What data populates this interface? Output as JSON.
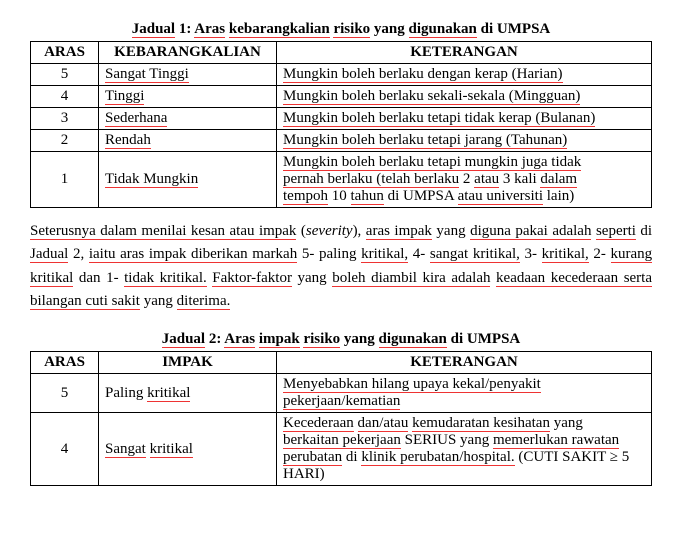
{
  "table1": {
    "caption_prefix": "Jadual",
    "caption_num": "1:",
    "caption_words": [
      "Aras",
      "kebarangkalian",
      "risiko",
      "yang",
      "digunakan",
      "di",
      "UMPSA"
    ],
    "headers": {
      "aras": "ARAS",
      "mid": "KEBARANGKALIAN",
      "ket": "KETERANGAN"
    },
    "rows": [
      {
        "aras": "5",
        "mid": "Sangat Tinggi",
        "ket_u": "Mungkin boleh berlaku dengan kerap (Harian)"
      },
      {
        "aras": "4",
        "mid": "Tinggi",
        "ket_u": "Mungkin boleh berlaku sekali-sekala (Mingguan)"
      },
      {
        "aras": "3",
        "mid": "Sederhana",
        "ket_u": "Mungkin boleh berlaku tetapi tidak kerap (Bulanan)"
      },
      {
        "aras": "2",
        "mid": "Rendah",
        "ket_u": "Mungkin boleh berlaku tetapi jarang (Tahunan)"
      }
    ],
    "row5": {
      "aras": "1",
      "mid": "Tidak Mungkin",
      "ket_l1": "Mungkin boleh berlaku tetapi mungkin juga tidak",
      "ket_l2a": "pernah berlaku (telah berlaku",
      "ket_l2b": "2",
      "ket_l2c": "atau",
      "ket_l2d": "3 kali",
      "ket_l2e": "dalam",
      "ket_l3a": "tempoh",
      "ket_l3b": "10",
      "ket_l3c": "tahun",
      "ket_l3d": "di UMPSA",
      "ket_l3e": "atau universiti",
      "ket_l3f": "lain)"
    }
  },
  "paragraph": {
    "p1a": "Seterusnya dalam menilai kesan atau impak",
    "p1b": "(",
    "p1c": "severity",
    "p1d": "),",
    "p1e": "aras impak",
    "p1f": "yang",
    "p1g": "diguna pakai adalah",
    "p2a": "seperti",
    "p2b": "di",
    "p2c": "Jadual",
    "p2d": "2,",
    "p2e": "iaitu aras impak diberikan markah",
    "p2f": "5-",
    "p2g": "paling",
    "p2h": "kritikal,",
    "p2i": "4-",
    "p2j": "sangat kritikal,",
    "p2k": "3-",
    "p3a": "kritikal,",
    "p3b": "2-",
    "p3c": "kurang kritikal",
    "p3d": "dan 1-",
    "p3e": "tidak kritikal.",
    "p3f": "Faktor-faktor",
    "p3g": "yang",
    "p3h": "boleh diambil kira adalah",
    "p4a": "keadaan kecederaan serta bilangan cuti sakit",
    "p4b": "yang",
    "p4c": "diterima."
  },
  "table2": {
    "caption_prefix": "Jadual",
    "caption_num": "2:",
    "caption_words": [
      "Aras",
      "impak",
      "risiko",
      "yang",
      "digunakan",
      "di",
      "UMPSA"
    ],
    "headers": {
      "aras": "ARAS",
      "mid": "IMPAK",
      "ket": "KETERANGAN"
    },
    "row1": {
      "aras": "5",
      "mid": "Paling",
      "mid2": "kritikal",
      "k1": "Menyebabkan hilang upaya kekal/penyakit",
      "k2": "pekerjaan/kematian"
    },
    "row2": {
      "aras": "4",
      "mid": "Sangat",
      "mid2": "kritikal",
      "k1": "Kecederaan",
      "k2": "dan/atau",
      "k3": "kemudaratan kesihatan",
      "k4": "yang",
      "k5": "berkaitan pekerjaan",
      "k6": "SERIUS yang",
      "k7": "memerlukan rawatan",
      "k8": "perubatan",
      "k9": "di",
      "k10": "klinik perubatan/hospital.",
      "k11": "(CUTI SAKIT ≥ 5",
      "k12": "HARI)"
    }
  }
}
